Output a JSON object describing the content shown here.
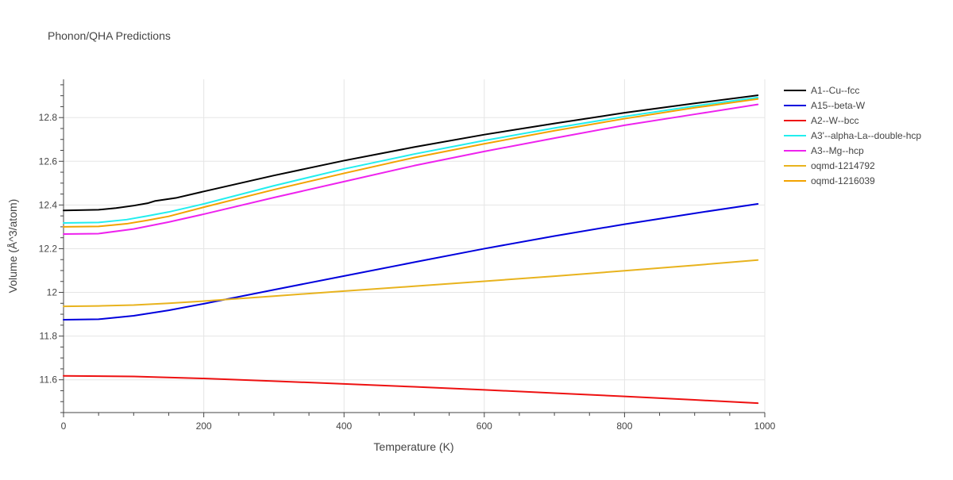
{
  "chart_data": {
    "type": "line",
    "title": "Phonon/QHA Predictions",
    "xlabel": "Temperature (K)",
    "ylabel": "Volume (Å^3/atom)",
    "xlim": [
      0,
      1000
    ],
    "ylim": [
      11.45,
      12.975
    ],
    "x_ticks": [
      0,
      200,
      400,
      600,
      800,
      1000
    ],
    "x_tick_labels": [
      "0",
      "200",
      "400",
      "600",
      "800",
      "1000"
    ],
    "y_ticks": [
      11.6,
      11.8,
      12.0,
      12.2,
      12.4,
      12.6,
      12.8
    ],
    "y_tick_labels": [
      "11.6",
      "11.8",
      "12",
      "12.2",
      "12.4",
      "12.6",
      "12.8"
    ],
    "grid": true,
    "legend_position": "right",
    "series": [
      {
        "name": "A1--Cu--fcc",
        "color": "#000000",
        "x": [
          0,
          50,
          75,
          100,
          120,
          130,
          160,
          200,
          300,
          400,
          500,
          600,
          700,
          800,
          900,
          990
        ],
        "y": [
          12.375,
          12.378,
          12.386,
          12.397,
          12.408,
          12.418,
          12.432,
          12.462,
          12.535,
          12.603,
          12.665,
          12.722,
          12.773,
          12.822,
          12.865,
          12.902
        ]
      },
      {
        "name": "A15--beta-W",
        "color": "#0000dd",
        "x": [
          0,
          50,
          100,
          150,
          200,
          300,
          400,
          500,
          600,
          700,
          800,
          900,
          990
        ],
        "y": [
          11.875,
          11.877,
          11.893,
          11.918,
          11.948,
          12.012,
          12.075,
          12.138,
          12.2,
          12.258,
          12.312,
          12.362,
          12.405
        ]
      },
      {
        "name": "A2--W--bcc",
        "color": "#ee1111",
        "x": [
          0,
          100,
          200,
          300,
          400,
          500,
          600,
          700,
          800,
          900,
          990
        ],
        "y": [
          11.618,
          11.615,
          11.606,
          11.594,
          11.581,
          11.568,
          11.554,
          11.539,
          11.524,
          11.508,
          11.493
        ]
      },
      {
        "name": "A3'--alpha-La--double-hcp",
        "color": "#22eeee",
        "x": [
          0,
          50,
          90,
          120,
          150,
          200,
          300,
          400,
          500,
          600,
          700,
          800,
          900,
          990
        ],
        "y": [
          12.318,
          12.32,
          12.333,
          12.35,
          12.368,
          12.405,
          12.488,
          12.565,
          12.633,
          12.695,
          12.752,
          12.805,
          12.853,
          12.892
        ]
      },
      {
        "name": "A3--Mg--hcp",
        "color": "#ee22ee",
        "x": [
          0,
          50,
          100,
          150,
          200,
          300,
          400,
          500,
          600,
          700,
          800,
          900,
          990
        ],
        "y": [
          12.267,
          12.269,
          12.29,
          12.322,
          12.358,
          12.434,
          12.507,
          12.58,
          12.645,
          12.706,
          12.765,
          12.815,
          12.86
        ]
      },
      {
        "name": "oqmd-1214792",
        "color": "#e8b31e",
        "x": [
          0,
          50,
          100,
          150,
          200,
          300,
          400,
          500,
          600,
          700,
          800,
          900,
          990
        ],
        "y": [
          11.936,
          11.938,
          11.942,
          11.95,
          11.96,
          11.983,
          12.006,
          12.028,
          12.051,
          12.074,
          12.099,
          12.124,
          12.148
        ]
      },
      {
        "name": "oqmd-1216039",
        "color": "#f2a300",
        "x": [
          0,
          50,
          90,
          120,
          150,
          200,
          300,
          400,
          500,
          600,
          700,
          800,
          900,
          990
        ],
        "y": [
          12.3,
          12.302,
          12.314,
          12.33,
          12.348,
          12.39,
          12.47,
          12.545,
          12.617,
          12.68,
          12.74,
          12.795,
          12.845,
          12.885
        ]
      }
    ]
  }
}
